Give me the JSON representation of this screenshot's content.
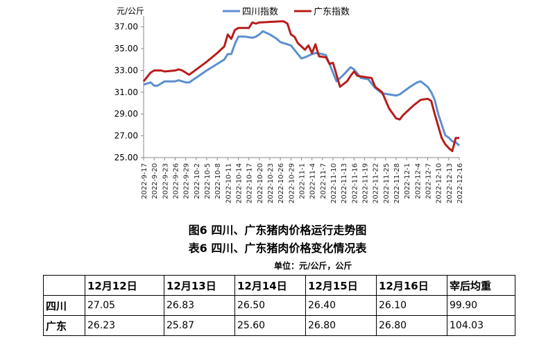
{
  "chart_data": {
    "type": "line",
    "ylabel": "元/公斤",
    "ylim": [
      25,
      38
    ],
    "yticks": [
      "25.00",
      "27.00",
      "29.00",
      "31.00",
      "33.00",
      "35.00",
      "37.00"
    ],
    "legend_position": "top",
    "grid": false,
    "x_tick_labels": [
      "2022-9-17",
      "2022-9-20",
      "2022-9-23",
      "2022-9-26",
      "2022-9-29",
      "2022-10-2",
      "2022-10-5",
      "2022-10-8",
      "2022-10-11",
      "2022-10-14",
      "2022-10-17",
      "2022-10-20",
      "2022-10-23",
      "2022-10-26",
      "2022-10-29",
      "2022-11-1",
      "2022-11-4",
      "2022-11-7",
      "2022-11-10",
      "2022-11-13",
      "2022-11-16",
      "2022-11-19",
      "2022-11-22",
      "2022-11-25",
      "2022-11-28",
      "2022-12-1",
      "2022-12-4",
      "2022-12-7",
      "2022-12-10",
      "2022-12-13",
      "2022-12-16"
    ],
    "series": [
      {
        "name": "四川指数",
        "color": "#5b8fd0",
        "points": [
          [
            "2022-9-17",
            31.7
          ],
          [
            "2022-9-19",
            31.9
          ],
          [
            "2022-9-20",
            31.6
          ],
          [
            "2022-9-21",
            31.6
          ],
          [
            "2022-9-23",
            32.0
          ],
          [
            "2022-9-26",
            32.0
          ],
          [
            "2022-9-27",
            32.1
          ],
          [
            "2022-9-29",
            31.9
          ],
          [
            "2022-9-30",
            31.9
          ],
          [
            "2022-10-5",
            33.0
          ],
          [
            "2022-10-8",
            33.6
          ],
          [
            "2022-10-10",
            34.0
          ],
          [
            "2022-10-11",
            34.5
          ],
          [
            "2022-10-12",
            34.5
          ],
          [
            "2022-10-13",
            35.4
          ],
          [
            "2022-10-14",
            36.1
          ],
          [
            "2022-10-16",
            36.1
          ],
          [
            "2022-10-18",
            36.0
          ],
          [
            "2022-10-19",
            36.1
          ],
          [
            "2022-10-20",
            36.3
          ],
          [
            "2022-10-21",
            36.6
          ],
          [
            "2022-10-23",
            36.3
          ],
          [
            "2022-10-25",
            35.9
          ],
          [
            "2022-10-26",
            35.6
          ],
          [
            "2022-10-29",
            35.3
          ],
          [
            "2022-10-31",
            34.5
          ],
          [
            "2022-11-1",
            34.1
          ],
          [
            "2022-11-2",
            34.2
          ],
          [
            "2022-11-4",
            34.5
          ],
          [
            "2022-11-5",
            34.6
          ],
          [
            "2022-11-7",
            34.5
          ],
          [
            "2022-11-8",
            34.4
          ],
          [
            "2022-11-10",
            32.8
          ],
          [
            "2022-11-11",
            32.0
          ],
          [
            "2022-11-13",
            32.6
          ],
          [
            "2022-11-15",
            33.3
          ],
          [
            "2022-11-16",
            33.1
          ],
          [
            "2022-11-18",
            32.3
          ],
          [
            "2022-11-20",
            32.2
          ],
          [
            "2022-11-22",
            31.4
          ],
          [
            "2022-11-24",
            30.9
          ],
          [
            "2022-11-28",
            30.7
          ],
          [
            "2022-11-29",
            30.8
          ],
          [
            "2022-12-2",
            31.5
          ],
          [
            "2022-12-4",
            31.9
          ],
          [
            "2022-12-5",
            32.0
          ],
          [
            "2022-12-7",
            31.5
          ],
          [
            "2022-12-8",
            31.0
          ],
          [
            "2022-12-9",
            30.3
          ],
          [
            "2022-12-10",
            29.0
          ],
          [
            "2022-12-12",
            27.05
          ],
          [
            "2022-12-13",
            26.83
          ],
          [
            "2022-12-14",
            26.5
          ],
          [
            "2022-12-15",
            26.4
          ],
          [
            "2022-12-16",
            26.1
          ]
        ]
      },
      {
        "name": "广东指数",
        "color": "#b71c1c",
        "points": [
          [
            "2022-9-17",
            32.0
          ],
          [
            "2022-9-19",
            32.8
          ],
          [
            "2022-9-20",
            33.0
          ],
          [
            "2022-9-22",
            33.0
          ],
          [
            "2022-9-23",
            32.9
          ],
          [
            "2022-9-26",
            33.0
          ],
          [
            "2022-9-27",
            33.1
          ],
          [
            "2022-9-28",
            33.0
          ],
          [
            "2022-9-29",
            32.8
          ],
          [
            "2022-9-30",
            32.6
          ],
          [
            "2022-10-5",
            33.8
          ],
          [
            "2022-10-8",
            34.6
          ],
          [
            "2022-10-10",
            35.2
          ],
          [
            "2022-10-11",
            36.3
          ],
          [
            "2022-10-12",
            35.9
          ],
          [
            "2022-10-13",
            36.7
          ],
          [
            "2022-10-14",
            36.9
          ],
          [
            "2022-10-17",
            36.9
          ],
          [
            "2022-10-18",
            37.4
          ],
          [
            "2022-10-19",
            37.3
          ],
          [
            "2022-10-20",
            37.4
          ],
          [
            "2022-10-26",
            37.5
          ],
          [
            "2022-10-27",
            37.5
          ],
          [
            "2022-10-28",
            37.3
          ],
          [
            "2022-10-29",
            36.3
          ],
          [
            "2022-10-30",
            36.1
          ],
          [
            "2022-10-31",
            35.5
          ],
          [
            "2022-11-2",
            34.9
          ],
          [
            "2022-11-3",
            35.3
          ],
          [
            "2022-11-4",
            34.6
          ],
          [
            "2022-11-5",
            35.4
          ],
          [
            "2022-11-6",
            34.3
          ],
          [
            "2022-11-8",
            34.2
          ],
          [
            "2022-11-9",
            33.6
          ],
          [
            "2022-11-10",
            33.7
          ],
          [
            "2022-11-11",
            32.6
          ],
          [
            "2022-11-12",
            31.5
          ],
          [
            "2022-11-14",
            32.0
          ],
          [
            "2022-11-15",
            32.5
          ],
          [
            "2022-11-16",
            32.9
          ],
          [
            "2022-11-17",
            32.5
          ],
          [
            "2022-11-19",
            32.4
          ],
          [
            "2022-11-21",
            32.3
          ],
          [
            "2022-11-22",
            31.5
          ],
          [
            "2022-11-24",
            31.0
          ],
          [
            "2022-11-26",
            29.5
          ],
          [
            "2022-11-28",
            28.6
          ],
          [
            "2022-11-29",
            28.5
          ],
          [
            "2022-11-30",
            28.9
          ],
          [
            "2022-12-2",
            29.5
          ],
          [
            "2022-12-3",
            29.8
          ],
          [
            "2022-12-5",
            30.3
          ],
          [
            "2022-12-7",
            30.4
          ],
          [
            "2022-12-8",
            30.2
          ],
          [
            "2022-12-9",
            29.0
          ],
          [
            "2022-12-11",
            26.8
          ],
          [
            "2022-12-12",
            26.23
          ],
          [
            "2022-12-13",
            25.87
          ],
          [
            "2022-12-14",
            25.6
          ],
          [
            "2022-12-15",
            26.8
          ],
          [
            "2022-12-16",
            26.8
          ]
        ]
      }
    ]
  },
  "captions": {
    "figure_title": "图6 四川、广东猪肉价格运行走势图",
    "table_title": "表6 四川、广东猪肉价格变化情况表",
    "unit": "单位：元/公斤，公斤"
  },
  "table": {
    "headers": [
      "",
      "12月12日",
      "12月13日",
      "12月14日",
      "12月15日",
      "12月16日",
      "宰后均重"
    ],
    "rows": [
      [
        "四川",
        "27.05",
        "26.83",
        "26.50",
        "26.40",
        "26.10",
        "99.90"
      ],
      [
        "广东",
        "26.23",
        "25.87",
        "25.60",
        "26.80",
        "26.80",
        "104.03"
      ]
    ]
  }
}
